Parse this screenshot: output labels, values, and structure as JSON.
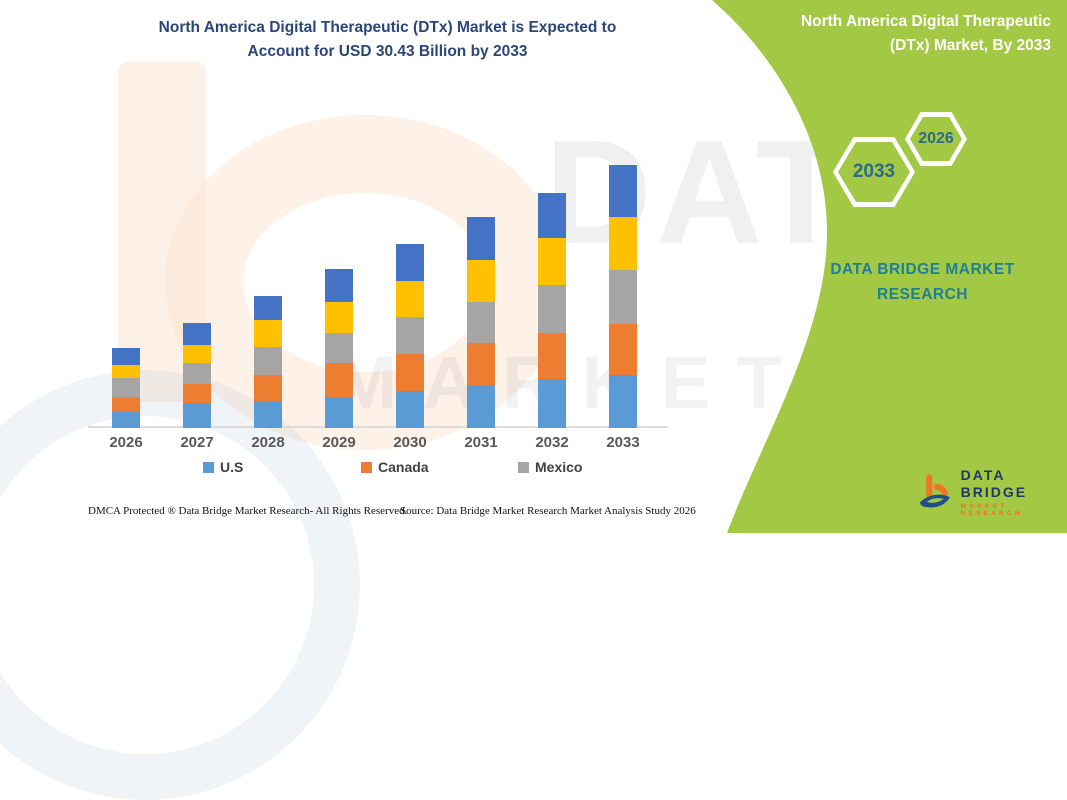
{
  "main_title": {
    "line1": "North America Digital Therapeutic (DTx) Market is Expected to",
    "line2": "Account for USD 30.43 Billion by 2033",
    "color": "#2a4679"
  },
  "side_panel": {
    "bg_color": "#a3c843",
    "title_line1": "North America Digital Therapeutic",
    "title_line2": "(DTx) Market, By 2033",
    "hex_large_label": "2033",
    "hex_small_label": "2026",
    "hex_text_color": "#2b6b8c",
    "brand_line1": "DATA BRIDGE MARKET",
    "brand_line2": "RESEARCH",
    "brand_color": "#1f7f96",
    "logo": {
      "name": "DATA BRIDGE",
      "sub": "MARKET RESEARCH",
      "name_color": "#1f3864",
      "sub_color": "#e87722"
    }
  },
  "watermark": {
    "line1": "DATA BRIDGE",
    "line2": "MARKET RESEARCH"
  },
  "chart_data": {
    "type": "bar",
    "stacked": true,
    "title": "North America Digital Therapeutic (DTx) Market is Expected to Account for USD 30.43 Billion by 2033",
    "unit": "USD Billion",
    "categories": [
      "2026",
      "2027",
      "2028",
      "2029",
      "2030",
      "2031",
      "2032",
      "2033"
    ],
    "series": [
      {
        "name": "U.S",
        "color": "#5b9bd5",
        "in_legend": true,
        "values": [
          1.85,
          2.85,
          3.0,
          3.6,
          4.25,
          4.95,
          5.65,
          6.1
        ]
      },
      {
        "name": "Canada",
        "color": "#ed7d31",
        "in_legend": true,
        "values": [
          1.75,
          2.3,
          3.15,
          3.95,
          4.35,
          4.85,
          5.3,
          5.95
        ]
      },
      {
        "name": "Mexico",
        "color": "#a5a5a5",
        "in_legend": true,
        "values": [
          2.2,
          2.35,
          3.25,
          3.45,
          4.2,
          4.75,
          5.65,
          6.25
        ]
      },
      {
        "name": "(unlabeled yellow segment)",
        "color": "#ffc000",
        "in_legend": false,
        "values": [
          1.5,
          2.1,
          3.1,
          3.6,
          4.25,
          4.95,
          5.4,
          6.1
        ]
      },
      {
        "name": "(unlabeled blue segment)",
        "color": "#4472c4",
        "in_legend": false,
        "values": [
          1.95,
          2.55,
          2.75,
          3.85,
          4.3,
          4.9,
          5.2,
          6.03
        ]
      }
    ],
    "totals": [
      9.25,
      12.15,
      15.25,
      18.45,
      21.35,
      24.4,
      27.2,
      30.43
    ],
    "values_note": "no y-axis shown; segment values estimated from bar heights, anchored to stated 2033 total of USD 30.43 billion",
    "y_axis_visible": false,
    "grid": false,
    "legend_position": "bottom",
    "legend": [
      "U.S",
      "Canada",
      "Mexico"
    ]
  },
  "footer": {
    "left": "DMCA Protected ® Data Bridge Market Research-  All Rights Reserved.",
    "source": "Source: Data Bridge Market Research  Market Analysis Study 2026"
  }
}
